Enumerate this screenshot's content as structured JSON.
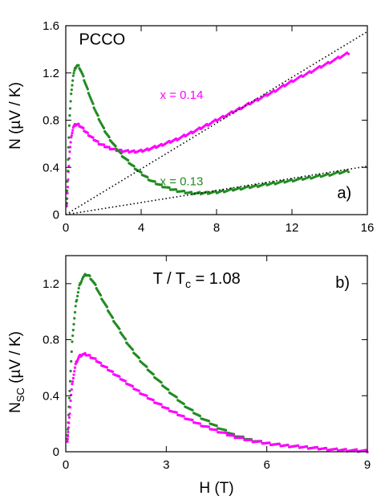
{
  "chart_data": [
    {
      "panel": "a",
      "type": "scatter",
      "title": "",
      "xlabel": "",
      "ylabel": "N (µV / K)",
      "xlim": [
        0,
        16
      ],
      "ylim": [
        0,
        1.6
      ],
      "xticks": [
        0,
        4,
        8,
        12,
        16
      ],
      "xtick_labels": [
        "0",
        "4",
        "8",
        "12",
        "16"
      ],
      "yticks": [
        0,
        0.4,
        0.8,
        1.2,
        1.6
      ],
      "ytick_labels": [
        "0",
        "0.4",
        "0.8",
        "1.2",
        "1.6"
      ],
      "grid": false,
      "annotations": [
        {
          "text": "PCCO",
          "x": 0.7,
          "y": 1.44
        },
        {
          "text": "a)",
          "x": 14.4,
          "y": 0.14
        }
      ],
      "series": [
        {
          "name": "x = 0.14",
          "label_at": {
            "x": 5.0,
            "y": 0.98
          },
          "color": "#ff00ff",
          "x": [
            0.05,
            0.1,
            0.15,
            0.2,
            0.3,
            0.4,
            0.5,
            0.6,
            0.7,
            0.8,
            0.9,
            1.0,
            1.2,
            1.4,
            1.6,
            1.8,
            2.0,
            2.3,
            2.6,
            3.0,
            3.4,
            3.8,
            4.2,
            5.0,
            6.0,
            7.0,
            8.0,
            9.0,
            10.0,
            11.0,
            12.0,
            13.0,
            14.0,
            15.0
          ],
          "y": [
            0.08,
            0.22,
            0.38,
            0.52,
            0.67,
            0.74,
            0.76,
            0.765,
            0.76,
            0.745,
            0.73,
            0.71,
            0.68,
            0.65,
            0.625,
            0.6,
            0.585,
            0.565,
            0.55,
            0.54,
            0.535,
            0.535,
            0.545,
            0.585,
            0.645,
            0.72,
            0.8,
            0.88,
            0.96,
            1.04,
            1.13,
            1.21,
            1.29,
            1.37
          ]
        },
        {
          "name": "x = 0.13",
          "label_at": {
            "x": 5.0,
            "y": 0.25
          },
          "color": "#228b22",
          "x": [
            0.05,
            0.1,
            0.15,
            0.2,
            0.3,
            0.4,
            0.5,
            0.6,
            0.7,
            0.8,
            0.9,
            1.0,
            1.2,
            1.4,
            1.6,
            1.8,
            2.0,
            2.3,
            2.6,
            3.0,
            3.5,
            4.0,
            4.5,
            5.0,
            5.5,
            6.0,
            6.5,
            7.0,
            8.0,
            9.0,
            10.0,
            11.0,
            12.0,
            13.0,
            14.0,
            15.0
          ],
          "y": [
            0.1,
            0.35,
            0.6,
            0.82,
            1.05,
            1.18,
            1.24,
            1.265,
            1.255,
            1.22,
            1.18,
            1.13,
            1.04,
            0.95,
            0.87,
            0.8,
            0.73,
            0.65,
            0.58,
            0.5,
            0.42,
            0.35,
            0.29,
            0.25,
            0.22,
            0.2,
            0.185,
            0.18,
            0.19,
            0.215,
            0.24,
            0.265,
            0.29,
            0.315,
            0.34,
            0.37
          ]
        },
        {
          "name": "",
          "style": "dotted",
          "color": "#000000",
          "x": [
            0,
            16
          ],
          "y": [
            0,
            1.55
          ]
        },
        {
          "name": "",
          "style": "dotted",
          "color": "#000000",
          "x": [
            0,
            16
          ],
          "y": [
            0,
            0.41
          ]
        }
      ]
    },
    {
      "panel": "b",
      "type": "scatter",
      "title": "",
      "xlabel": "H (T)",
      "ylabel": "N",
      "ylabel_sub": "SC",
      "ylabel_rest": " (µV / K)",
      "xlim": [
        0,
        9
      ],
      "ylim": [
        0,
        1.4
      ],
      "xticks": [
        0,
        3,
        6,
        9
      ],
      "xtick_labels": [
        "0",
        "3",
        "6",
        "9"
      ],
      "yticks": [
        0,
        0.4,
        0.8,
        1.2
      ],
      "ytick_labels": [
        "0",
        "0.4",
        "0.8",
        "1.2"
      ],
      "grid": false,
      "annotations": [
        {
          "text": "T / T",
          "sub": "c",
          "rest": " = 1.08",
          "x": 2.6,
          "y": 1.2
        },
        {
          "text": "b)",
          "x": 8.05,
          "y": 1.17
        }
      ],
      "series": [
        {
          "name": "",
          "color": "#228b22",
          "x": [
            0.05,
            0.1,
            0.15,
            0.2,
            0.3,
            0.4,
            0.5,
            0.6,
            0.7,
            0.8,
            0.9,
            1.0,
            1.2,
            1.4,
            1.6,
            1.8,
            2.0,
            2.3,
            2.6,
            3.0,
            3.5,
            4.0,
            4.5,
            5.0,
            5.5,
            6.0,
            6.5,
            7.0,
            7.5,
            8.0,
            8.5,
            9.0
          ],
          "y": [
            0.1,
            0.35,
            0.6,
            0.82,
            1.05,
            1.18,
            1.24,
            1.265,
            1.255,
            1.22,
            1.18,
            1.13,
            1.04,
            0.95,
            0.87,
            0.79,
            0.72,
            0.63,
            0.55,
            0.45,
            0.34,
            0.25,
            0.18,
            0.12,
            0.085,
            0.06,
            0.045,
            0.035,
            0.025,
            0.015,
            0.01,
            0.005
          ]
        },
        {
          "name": "",
          "color": "#ff00ff",
          "x": [
            0.05,
            0.1,
            0.15,
            0.2,
            0.3,
            0.4,
            0.5,
            0.6,
            0.7,
            0.8,
            0.9,
            1.0,
            1.2,
            1.4,
            1.6,
            1.8,
            2.0,
            2.3,
            2.6,
            3.0,
            3.5,
            4.0,
            4.5,
            5.0,
            5.5,
            6.0,
            6.5,
            7.0,
            7.5,
            8.0,
            8.5,
            9.0
          ],
          "y": [
            0.08,
            0.22,
            0.38,
            0.5,
            0.63,
            0.68,
            0.695,
            0.695,
            0.685,
            0.67,
            0.655,
            0.635,
            0.6,
            0.565,
            0.53,
            0.495,
            0.46,
            0.41,
            0.365,
            0.31,
            0.25,
            0.195,
            0.15,
            0.11,
            0.08,
            0.06,
            0.045,
            0.035,
            0.025,
            0.015,
            0.01,
            0.005
          ]
        }
      ]
    }
  ]
}
